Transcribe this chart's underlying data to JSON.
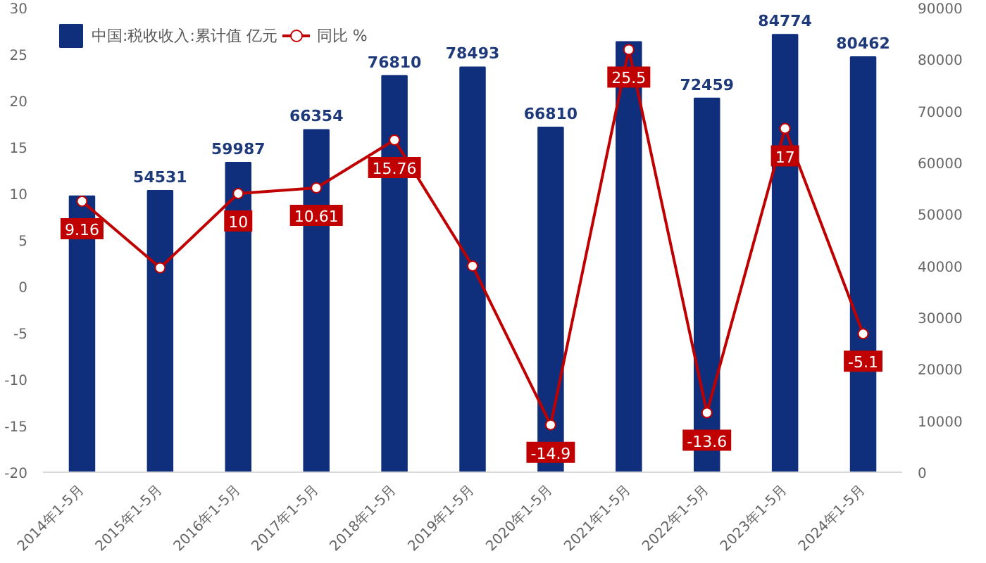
{
  "chart_data": {
    "type": "bar",
    "categories": [
      "2014年1-5月",
      "2015年1-5月",
      "2016年1-5月",
      "2017年1-5月",
      "2018年1-5月",
      "2019年1-5月",
      "2020年1-5月",
      "2021年1-5月",
      "2022年1-5月",
      "2023年1-5月",
      "2024年1-5月"
    ],
    "series": [
      {
        "name": "中国:税收收入:累计值 亿元",
        "axis": "y2",
        "color": "#0f2f7d",
        "values": [
          53500,
          54531,
          59987,
          66354,
          76810,
          78493,
          66810,
          83400,
          72459,
          84774,
          80462
        ],
        "value_labels": [
          null,
          "54531",
          "59987",
          "66354",
          "76810",
          "78493",
          "66810",
          null,
          "72459",
          "84774",
          "80462"
        ]
      },
      {
        "name": "同比 %",
        "type": "line",
        "color": "#c00000",
        "marker": "circle",
        "values": [
          9.16,
          2.0,
          10,
          10.61,
          15.76,
          2.2,
          -14.9,
          25.5,
          -13.6,
          17,
          -5.1
        ],
        "value_labels": [
          "9.16",
          null,
          "10",
          "10.61",
          "15.76",
          null,
          "-14.9",
          "25.5",
          "-13.6",
          "17",
          "-5.1"
        ]
      }
    ],
    "ylim": [
      -20,
      30
    ],
    "yticks": [
      -20,
      -15,
      -10,
      -5,
      0,
      5,
      10,
      15,
      20,
      25,
      30
    ],
    "y2lim": [
      0,
      90000
    ],
    "y2ticks": [
      0,
      10000,
      20000,
      30000,
      40000,
      50000,
      60000,
      70000,
      80000,
      90000
    ],
    "legend": "top",
    "grid": false
  }
}
